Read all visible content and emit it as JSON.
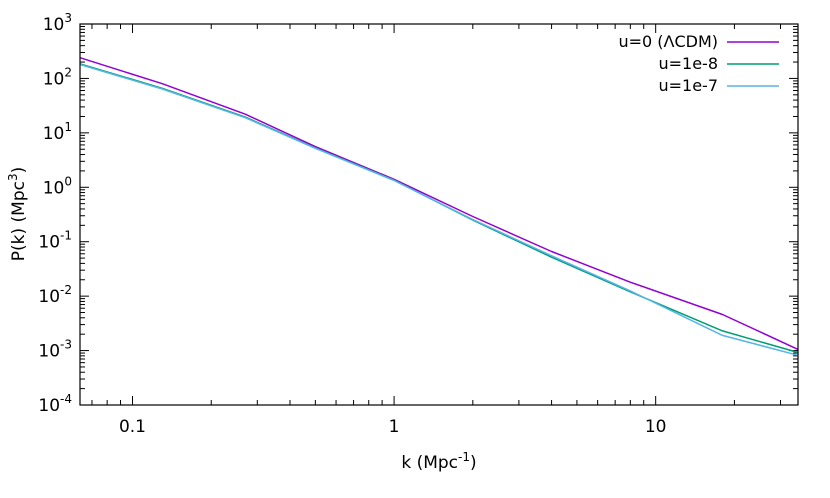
{
  "chart_data": {
    "type": "line",
    "xlabel": {
      "base": "k (Mpc",
      "sup": "-1",
      "tail": ")"
    },
    "ylabel": {
      "base": "P(k) (Mpc",
      "sup": "3",
      "tail": ")"
    },
    "xscale": "log",
    "yscale": "log",
    "xlim": [
      0.063,
      35
    ],
    "ylim": [
      0.0001,
      1000
    ],
    "xticks": [
      {
        "value": 0.1,
        "label": "0.1"
      },
      {
        "value": 1,
        "label": "1"
      },
      {
        "value": 10,
        "label": "10"
      }
    ],
    "yticks": [
      {
        "value": 0.0001,
        "base": "10",
        "exp": "-4"
      },
      {
        "value": 0.001,
        "base": "10",
        "exp": "-3"
      },
      {
        "value": 0.01,
        "base": "10",
        "exp": "-2"
      },
      {
        "value": 0.1,
        "base": "10",
        "exp": "-1"
      },
      {
        "value": 1,
        "base": "10",
        "exp": "0"
      },
      {
        "value": 10,
        "base": "10",
        "exp": "1"
      },
      {
        "value": 100,
        "base": "10",
        "exp": "2"
      },
      {
        "value": 1000,
        "base": "10",
        "exp": "3"
      }
    ],
    "grid": false,
    "legend_position": "top-right",
    "series": [
      {
        "name": "u=0 (ΛCDM)",
        "color": "#9400d3",
        "x": [
          0.063,
          0.13,
          0.27,
          0.5,
          1,
          2,
          4,
          8,
          18,
          35
        ],
        "y": [
          240,
          80,
          22,
          5.6,
          1.4,
          0.29,
          0.066,
          0.018,
          0.0046,
          0.00105
        ]
      },
      {
        "name": "u=1e-8",
        "color": "#009e73",
        "x": [
          0.063,
          0.13,
          0.27,
          0.5,
          1,
          2,
          4,
          8,
          18,
          35
        ],
        "y": [
          185,
          66,
          19.5,
          5.3,
          1.35,
          0.25,
          0.052,
          0.012,
          0.0023,
          0.00092
        ]
      },
      {
        "name": "u=1e-7",
        "color": "#56b4e9",
        "x": [
          0.063,
          0.13,
          0.27,
          0.5,
          1,
          2,
          4,
          8,
          18,
          35
        ],
        "y": [
          180,
          64,
          19,
          5.2,
          1.33,
          0.255,
          0.055,
          0.0125,
          0.0019,
          0.00082
        ]
      }
    ]
  }
}
